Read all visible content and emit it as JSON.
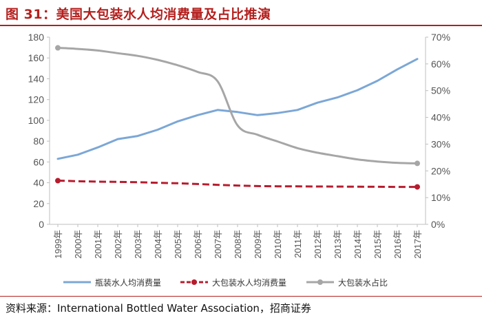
{
  "header": {
    "title": "图 31：美国大包装水人均消费量及占比推演"
  },
  "footer": {
    "source": "资料来源：International Bottled Water Association，招商证券"
  },
  "colors": {
    "title": "#b3201e",
    "series_bottle": "#7ba7d6",
    "series_big": "#b71c2e",
    "series_share": "#a6a6a6"
  },
  "chart_data": {
    "type": "line",
    "title": "",
    "categories": [
      "1999年",
      "2000年",
      "2001年",
      "2002年",
      "2003年",
      "2004年",
      "2005年",
      "2006年",
      "2007年",
      "2008年",
      "2009年",
      "2010年",
      "2011年",
      "2012年",
      "2013年",
      "2014年",
      "2015年",
      "2016年",
      "2017年"
    ],
    "left_axis": {
      "min": 0,
      "max": 180,
      "step": 20,
      "ticks": [
        "0",
        "20",
        "40",
        "60",
        "80",
        "100",
        "120",
        "140",
        "160",
        "180"
      ]
    },
    "right_axis": {
      "min": 0,
      "max": 70,
      "step": 10,
      "ticks": [
        "0%",
        "10%",
        "20%",
        "30%",
        "40%",
        "50%",
        "60%",
        "70%"
      ]
    },
    "series": [
      {
        "name": "瓶装水人均消费量",
        "axis": "left",
        "style": "solid",
        "values": [
          63,
          67,
          74,
          82,
          85,
          91,
          99,
          105,
          110,
          108,
          105,
          107,
          110,
          117,
          122,
          129,
          138,
          149,
          159
        ]
      },
      {
        "name": "大包装水人均消费量",
        "axis": "left",
        "style": "dashed",
        "values": [
          42,
          41.5,
          41,
          40.8,
          40.5,
          40,
          39.5,
          38.8,
          38,
          37.3,
          36.8,
          36.6,
          36.5,
          36.4,
          36.3,
          36.2,
          36.1,
          36,
          36
        ]
      },
      {
        "name": "大包装水占比",
        "axis": "right",
        "style": "smooth",
        "values": [
          66,
          65.6,
          65,
          64,
          63,
          61.5,
          59.5,
          57,
          53.5,
          37,
          33.5,
          31,
          28.5,
          26.8,
          25.5,
          24.3,
          23.5,
          23,
          22.8
        ]
      }
    ],
    "legend": {
      "position": "bottom",
      "items": [
        "瓶装水人均消费量",
        "大包装水人均消费量",
        "大包装水占比"
      ]
    }
  }
}
